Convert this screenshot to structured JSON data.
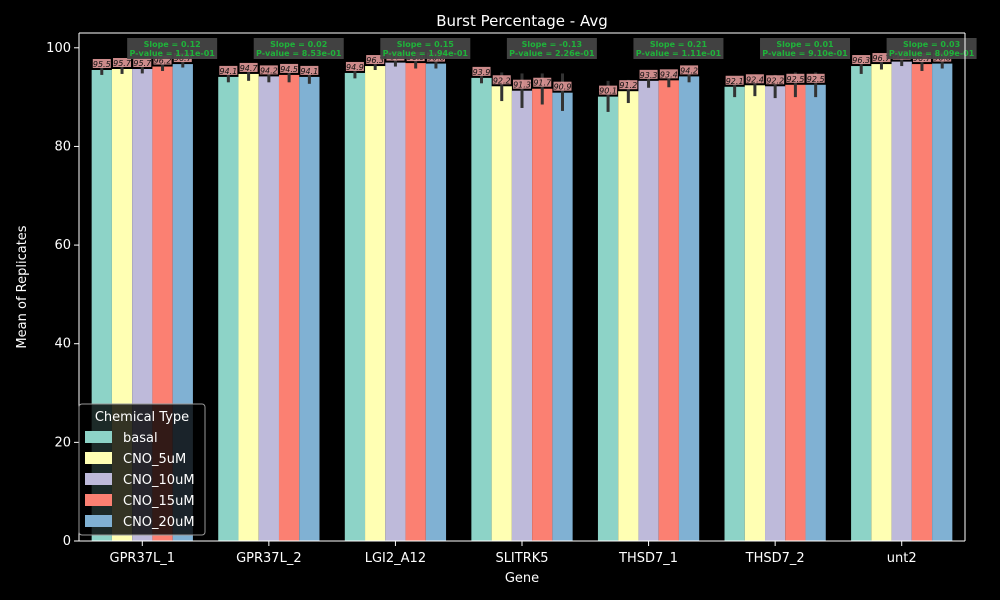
{
  "chart_data": {
    "type": "bar",
    "title": "Burst Percentage - Avg",
    "xlabel": "Gene",
    "ylabel": "Mean of Replicates",
    "ylim": [
      0,
      103
    ],
    "yticks": [
      0,
      20,
      40,
      60,
      80,
      100
    ],
    "grid": false,
    "legend_title": "Chemical Type",
    "legend_position": "bottom-left",
    "categories": [
      "GPR37L_1",
      "GPR37L_2",
      "LGI2_A12",
      "SLITRK5",
      "THSD7_1",
      "THSD7_2",
      "unt2"
    ],
    "series": [
      {
        "name": "basal",
        "color": "#8dd3c7",
        "values": [
          95.5,
          94.1,
          94.9,
          93.9,
          90.1,
          92.1,
          96.3
        ]
      },
      {
        "name": "CNO_5uM",
        "color": "#ffffb3",
        "values": [
          95.7,
          94.7,
          96.3,
          92.2,
          91.2,
          92.4,
          96.7
        ]
      },
      {
        "name": "CNO_10uM",
        "color": "#bebada",
        "values": [
          95.7,
          94.2,
          97.0,
          91.3,
          93.3,
          92.2,
          97.2
        ]
      },
      {
        "name": "CNO_15uM",
        "color": "#fb8072",
        "values": [
          96.2,
          94.5,
          96.9,
          91.7,
          93.4,
          92.5,
          96.7
        ]
      },
      {
        "name": "CNO_20uM",
        "color": "#80b1d3",
        "values": [
          96.7,
          94.1,
          96.8,
          90.9,
          94.2,
          92.5,
          96.8
        ]
      }
    ],
    "error_bars": [
      [
        [
          94.5,
          96.5
        ],
        [
          93.0,
          95.2
        ],
        [
          93.8,
          96.0
        ],
        [
          92.8,
          95.0
        ],
        [
          87.0,
          93.3
        ],
        [
          90.0,
          94.0
        ],
        [
          94.7,
          97.6
        ]
      ],
      [
        [
          94.7,
          96.7
        ],
        [
          93.3,
          96.0
        ],
        [
          95.5,
          97.2
        ],
        [
          89.2,
          95.0
        ],
        [
          88.8,
          93.5
        ],
        [
          90.2,
          94.5
        ],
        [
          95.6,
          97.8
        ]
      ],
      [
        [
          94.8,
          96.6
        ],
        [
          93.0,
          95.3
        ],
        [
          96.2,
          97.8
        ],
        [
          87.8,
          94.8
        ],
        [
          91.9,
          94.8
        ],
        [
          89.8,
          94.5
        ],
        [
          96.3,
          98.0
        ]
      ],
      [
        [
          95.3,
          97.1
        ],
        [
          93.0,
          96.0
        ],
        [
          95.8,
          98.0
        ],
        [
          88.5,
          94.8
        ],
        [
          92.0,
          94.8
        ],
        [
          90.0,
          95.0
        ],
        [
          95.3,
          98.0
        ]
      ],
      [
        [
          96.0,
          97.4
        ],
        [
          92.7,
          95.5
        ],
        [
          95.8,
          97.8
        ],
        [
          87.2,
          94.8
        ],
        [
          93.0,
          95.4
        ],
        [
          90.0,
          95.0
        ],
        [
          95.8,
          97.8
        ]
      ]
    ],
    "annotations": [
      {
        "slope": "Slope = 0.12",
        "pvalue": "P-value = 1.11e-01"
      },
      {
        "slope": "Slope = 0.02",
        "pvalue": "P-value = 8.53e-01"
      },
      {
        "slope": "Slope = 0.15",
        "pvalue": "P-value = 1.94e-01"
      },
      {
        "slope": "Slope = -0.13",
        "pvalue": "P-value = 2.26e-01"
      },
      {
        "slope": "Slope = 0.21",
        "pvalue": "P-value = 1.11e-01"
      },
      {
        "slope": "Slope = 0.01",
        "pvalue": "P-value = 9.10e-01"
      },
      {
        "slope": "Slope = 0.03",
        "pvalue": "P-value = 8.09e-01"
      }
    ]
  }
}
